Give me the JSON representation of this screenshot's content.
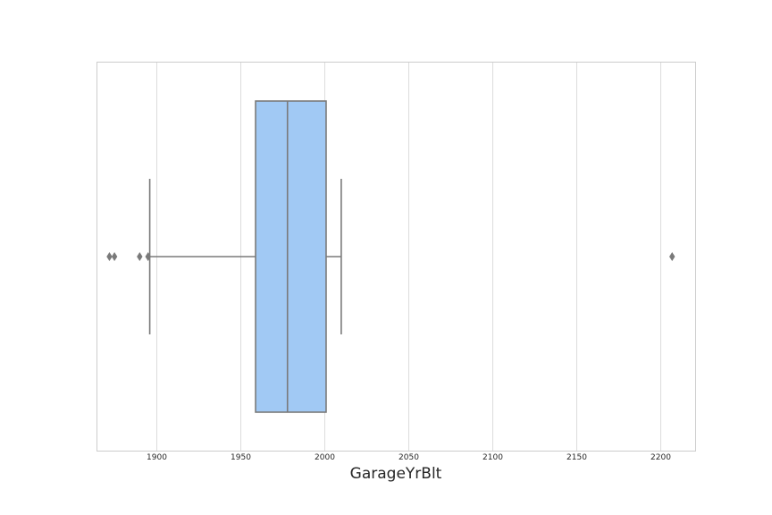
{
  "chart_data": {
    "type": "box",
    "orientation": "horizontal",
    "xlabel": "GarageYrBlt",
    "ylabel": "",
    "xlim": [
      1864.3,
      2220.7
    ],
    "xticks": [
      1900,
      1950,
      2000,
      2050,
      2100,
      2150,
      2200
    ],
    "grid": true,
    "colors": {
      "box_fill": "#a1c9f4",
      "lines": "#7a7a7a",
      "grid": "#dcdcdc",
      "spine": "#cccccc"
    },
    "box": {
      "q1": 1959,
      "median": 1978,
      "q3": 2001,
      "whisker_low": 1896,
      "whisker_high": 2010,
      "outliers": [
        1872,
        1875,
        1890,
        1895,
        2207
      ]
    }
  }
}
